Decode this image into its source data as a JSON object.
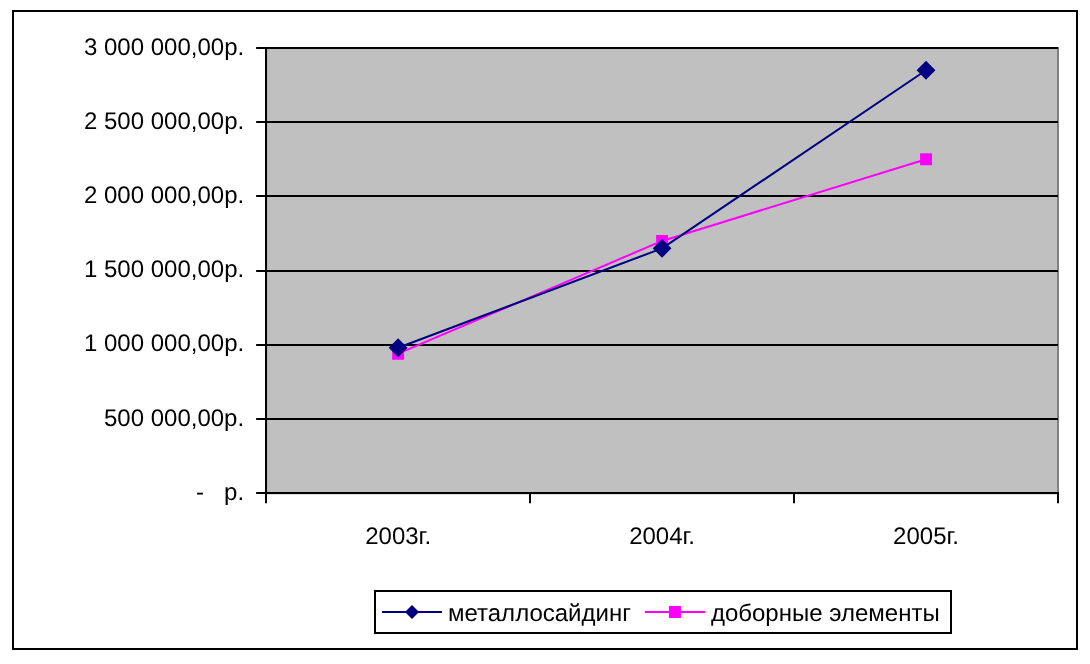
{
  "chart_data": {
    "type": "line",
    "categories": [
      "2003г.",
      "2004г.",
      "2005г."
    ],
    "series": [
      {
        "name": "металлосайдинг",
        "color": "#000080",
        "values": [
          980000,
          1650000,
          2850000
        ],
        "marker": "diamond"
      },
      {
        "name": "доборные элементы",
        "color": "#ff00ff",
        "values": [
          940000,
          1700000,
          2250000
        ],
        "marker": "square"
      }
    ],
    "ylim": [
      0,
      3000000
    ],
    "yticks": [
      {
        "value": 0,
        "label": "-   р."
      },
      {
        "value": 500000,
        "label": "500 000,00р."
      },
      {
        "value": 1000000,
        "label": "1 000 000,00р."
      },
      {
        "value": 1500000,
        "label": "1 500 000,00р."
      },
      {
        "value": 2000000,
        "label": "2 000 000,00р."
      },
      {
        "value": 2500000,
        "label": "2 500 000,00р."
      },
      {
        "value": 3000000,
        "label": "3 000 000,00р."
      }
    ],
    "grid": "y",
    "legend": "bottom",
    "line_style": "solid"
  }
}
